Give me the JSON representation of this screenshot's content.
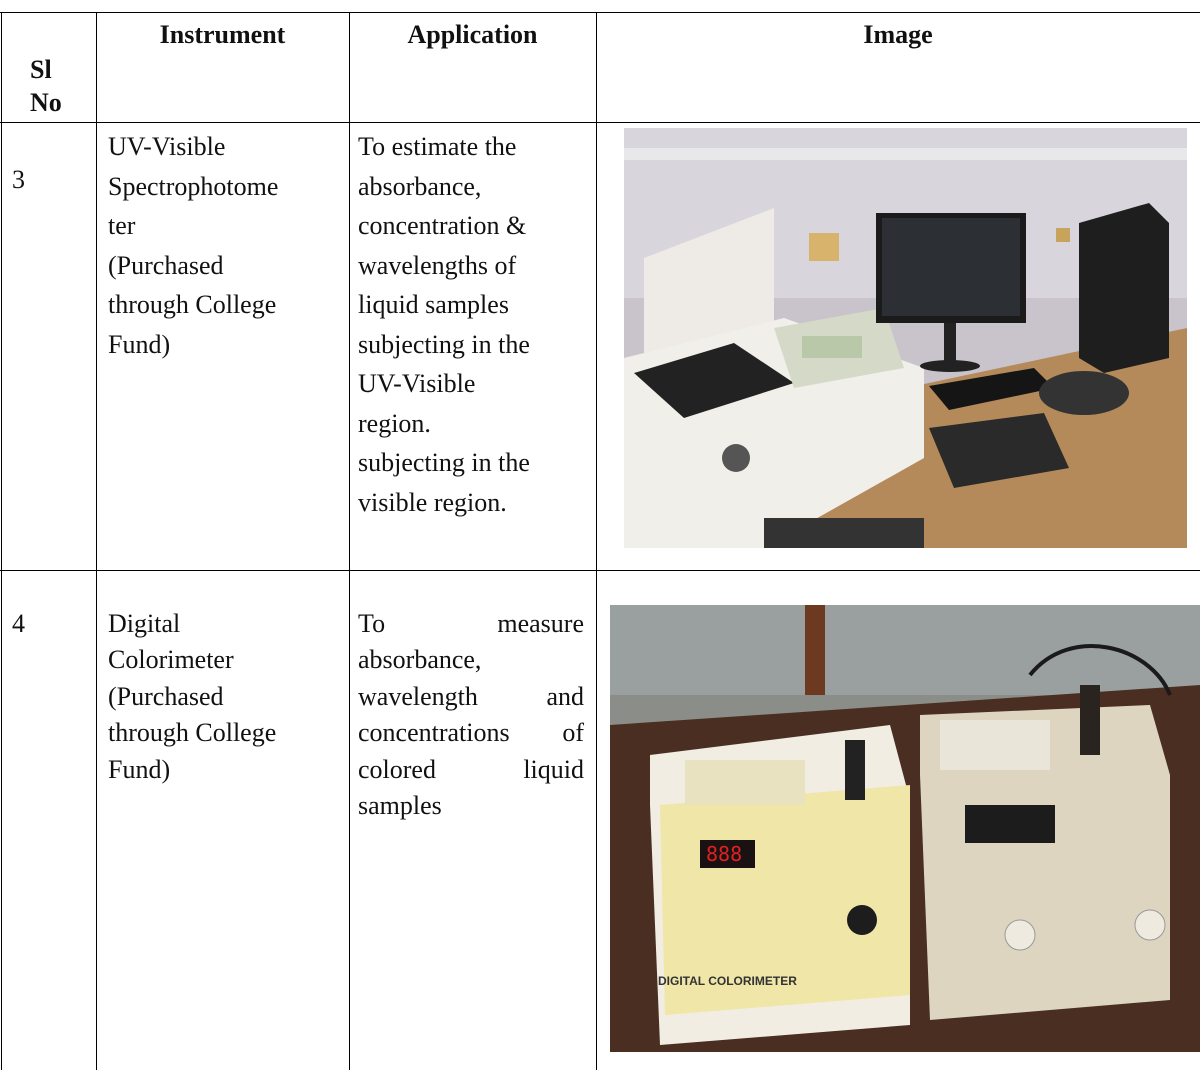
{
  "table": {
    "header": {
      "sl_no": [
        "Sl",
        "No"
      ],
      "instrument": "Instrument",
      "application": "Application",
      "image": "Image"
    },
    "rows": [
      {
        "sl_no": "3",
        "instrument": [
          "UV-Visible",
          "Spectrophotome",
          "ter",
          "(Purchased",
          "through College",
          "Fund)"
        ],
        "application": [
          "To estimate the",
          "absorbance,",
          "concentration &",
          "wavelengths of",
          "liquid samples",
          "subjecting in the",
          "UV-Visible",
          "region.",
          "subjecting in the",
          "visible region."
        ]
      },
      {
        "sl_no": "4",
        "instrument": [
          "Digital",
          "Colorimeter",
          "(Purchased",
          "through College",
          "Fund)"
        ],
        "application": [
          "To measure",
          "absorbance,",
          "wavelength and",
          "concentrations of",
          "colored liquid",
          "samples"
        ]
      }
    ]
  }
}
